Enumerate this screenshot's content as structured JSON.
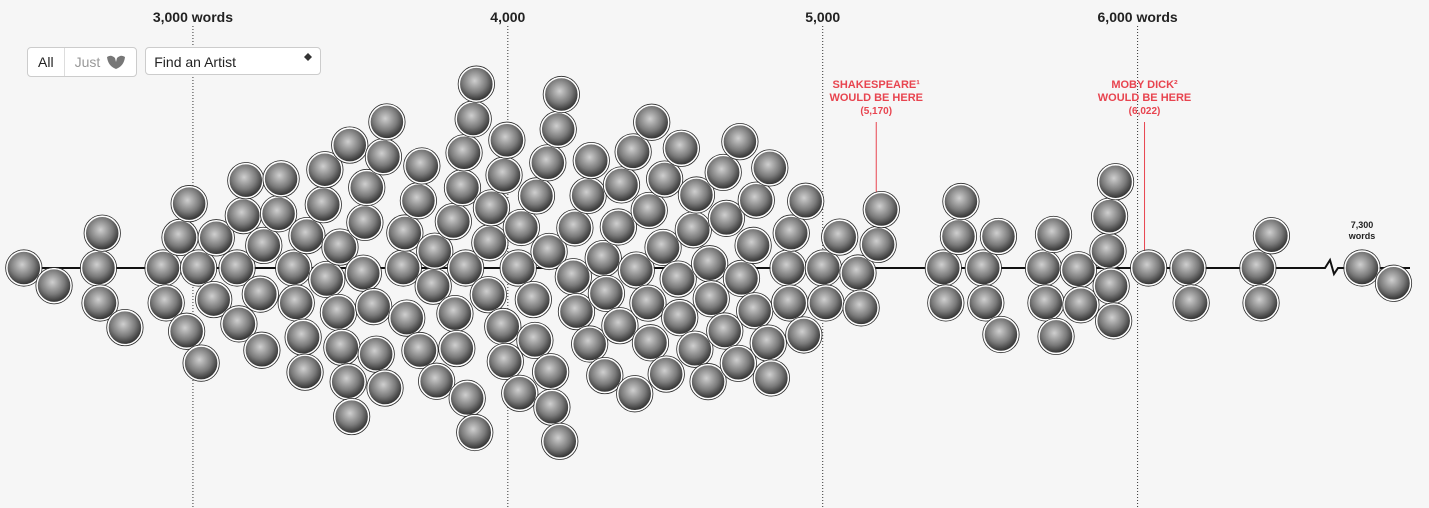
{
  "controls": {
    "all": "All",
    "just": "Just",
    "search": "Find an Artist"
  },
  "chart_data": {
    "type": "beeswarm",
    "color": "#2a2a2a",
    "xlim": [
      2400,
      6900
    ],
    "xticks": [
      {
        "value": 3000,
        "label": "3,000 words"
      },
      {
        "value": 4000,
        "label": "4,000"
      },
      {
        "value": 5000,
        "label": "5,000"
      },
      {
        "value": 6000,
        "label": "6,000 words"
      }
    ],
    "values": [
      2463,
      2559,
      2700,
      2705,
      2712,
      2784,
      2905,
      2915,
      2959,
      2980,
      2988,
      3018,
      3026,
      3066,
      3074,
      3140,
      3146,
      3160,
      3168,
      3214,
      3219,
      3225,
      3272,
      3280,
      3320,
      3328,
      3350,
      3356,
      3362,
      3414,
      3419,
      3425,
      3462,
      3467,
      3473,
      3493,
      3498,
      3504,
      3541,
      3546,
      3552,
      3574,
      3582,
      3605,
      3610,
      3616,
      3668,
      3673,
      3679,
      3716,
      3721,
      3727,
      3763,
      3768,
      3774,
      3827,
      3832,
      3838,
      3856,
      3861,
      3866,
      3871,
      3890,
      3895,
      3900,
      3938,
      3943,
      3948,
      3984,
      3988,
      3992,
      3997,
      4033,
      4038,
      4043,
      4081,
      4086,
      4091,
      4127,
      4131,
      4136,
      4140,
      4160,
      4165,
      4170,
      4208,
      4213,
      4218,
      4255,
      4260,
      4265,
      4303,
      4308,
      4313,
      4351,
      4356,
      4361,
      4398,
      4403,
      4408,
      4445,
      4449,
      4453,
      4457,
      4493,
      4498,
      4503,
      4541,
      4546,
      4551,
      4589,
      4594,
      4599,
      4636,
      4641,
      4646,
      4684,
      4689,
      4694,
      4732,
      4737,
      4742,
      4779,
      4784,
      4789,
      4827,
      4832,
      4837,
      4890,
      4895,
      4900,
      4940,
      4946,
      5002,
      5010,
      5054,
      5112,
      5122,
      5176,
      5186,
      5383,
      5391,
      5431,
      5439,
      5510,
      5518,
      5558,
      5566,
      5701,
      5709,
      5733,
      5741,
      5812,
      5820,
      5906,
      5911,
      5916,
      5924,
      5930,
      6035,
      6160,
      6170,
      6382,
      6392,
      6425,
      7300,
      7400
    ],
    "annotations": [
      {
        "x": 5170,
        "text": [
          "SHAKESPEARE¹",
          "WOULD BE HERE",
          "(5,170)"
        ],
        "color": "#e8444f"
      },
      {
        "x": 6022,
        "text": [
          "MOBY DICK²",
          "WOULD BE HERE",
          "(6,022)"
        ],
        "color": "#e8444f"
      },
      {
        "x": 7300,
        "text": [
          "7,300",
          "words"
        ],
        "color": "#222222"
      }
    ]
  }
}
